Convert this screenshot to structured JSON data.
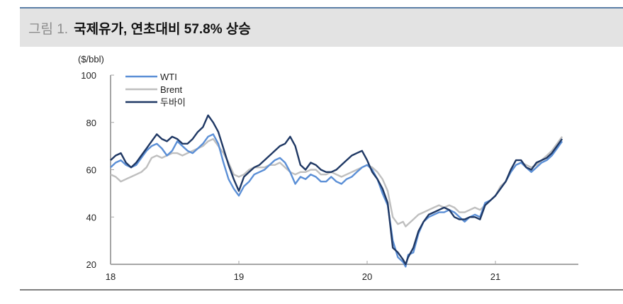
{
  "header": {
    "figure_prefix": "그림 1.",
    "title": "국제유가, 연초대비 57.8% 상승",
    "accent_color": "#5b7fa6",
    "band_color": "#e3e3e3"
  },
  "chart_data": {
    "type": "line",
    "title": "국제유가, 연초대비 57.8% 상승",
    "ylabel": "($/bbl)",
    "xlabel": "",
    "ylim": [
      20,
      100
    ],
    "yticks": [
      20,
      40,
      60,
      80,
      100
    ],
    "xticks": [
      "18",
      "19",
      "20",
      "21"
    ],
    "xlim": [
      2018.0,
      2021.65
    ],
    "grid": false,
    "legend_position": "upper-left",
    "legend": [
      "WTI",
      "Brent",
      "두바이"
    ],
    "series": [
      {
        "name": "WTI",
        "color": "#5b8fd6",
        "x": [
          2018.0,
          2018.04,
          2018.08,
          2018.12,
          2018.16,
          2018.2,
          2018.24,
          2018.28,
          2018.32,
          2018.36,
          2018.4,
          2018.44,
          2018.48,
          2018.52,
          2018.56,
          2018.6,
          2018.64,
          2018.68,
          2018.72,
          2018.76,
          2018.8,
          2018.84,
          2018.88,
          2018.92,
          2018.96,
          2019.0,
          2019.04,
          2019.08,
          2019.12,
          2019.16,
          2019.2,
          2019.24,
          2019.28,
          2019.32,
          2019.36,
          2019.4,
          2019.44,
          2019.48,
          2019.52,
          2019.56,
          2019.6,
          2019.64,
          2019.68,
          2019.72,
          2019.76,
          2019.8,
          2019.84,
          2019.88,
          2019.92,
          2019.96,
          2020.0,
          2020.04,
          2020.08,
          2020.12,
          2020.16,
          2020.2,
          2020.24,
          2020.28,
          2020.3,
          2020.32,
          2020.36,
          2020.4,
          2020.44,
          2020.48,
          2020.52,
          2020.56,
          2020.6,
          2020.64,
          2020.68,
          2020.72,
          2020.76,
          2020.8,
          2020.84,
          2020.88,
          2020.92,
          2020.96,
          2021.0,
          2021.04,
          2021.08,
          2021.12,
          2021.16,
          2021.2,
          2021.24,
          2021.28,
          2021.32,
          2021.36,
          2021.4,
          2021.44,
          2021.48,
          2021.52
        ],
        "values": [
          61,
          63,
          64,
          62,
          61,
          62,
          65,
          68,
          70,
          71,
          69,
          66,
          68,
          72,
          70,
          68,
          67,
          69,
          71,
          74,
          75,
          71,
          63,
          56,
          52,
          49,
          53,
          55,
          58,
          59,
          60,
          62,
          64,
          65,
          63,
          59,
          54,
          57,
          56,
          58,
          57,
          55,
          55,
          57,
          55,
          54,
          56,
          57,
          59,
          61,
          62,
          60,
          56,
          50,
          45,
          30,
          23,
          21,
          19,
          24,
          25,
          33,
          38,
          40,
          41,
          42,
          42,
          43,
          42,
          40,
          38,
          40,
          41,
          40,
          46,
          47,
          49,
          52,
          55,
          59,
          62,
          63,
          61,
          59,
          61,
          63,
          64,
          66,
          69,
          72
        ]
      },
      {
        "name": "Brent",
        "color": "#bfbfbf",
        "x": [
          2018.0,
          2018.04,
          2018.08,
          2018.12,
          2018.16,
          2018.2,
          2018.24,
          2018.28,
          2018.32,
          2018.36,
          2018.4,
          2018.44,
          2018.48,
          2018.52,
          2018.56,
          2018.6,
          2018.64,
          2018.68,
          2018.72,
          2018.76,
          2018.8,
          2018.84,
          2018.88,
          2018.92,
          2018.96,
          2019.0,
          2019.04,
          2019.08,
          2019.12,
          2019.16,
          2019.2,
          2019.24,
          2019.28,
          2019.32,
          2019.36,
          2019.4,
          2019.44,
          2019.48,
          2019.52,
          2019.56,
          2019.6,
          2019.64,
          2019.68,
          2019.72,
          2019.76,
          2019.8,
          2019.84,
          2019.88,
          2019.92,
          2019.96,
          2020.0,
          2020.04,
          2020.08,
          2020.12,
          2020.16,
          2020.2,
          2020.24,
          2020.28,
          2020.3,
          2020.32,
          2020.36,
          2020.4,
          2020.44,
          2020.48,
          2020.52,
          2020.56,
          2020.6,
          2020.64,
          2020.68,
          2020.72,
          2020.76,
          2020.8,
          2020.84,
          2020.88,
          2020.92,
          2020.96,
          2021.0,
          2021.04,
          2021.08,
          2021.12,
          2021.16,
          2021.2,
          2021.24,
          2021.28,
          2021.32,
          2021.36,
          2021.4,
          2021.44,
          2021.48,
          2021.52
        ],
        "values": [
          58,
          57,
          55,
          56,
          57,
          58,
          59,
          61,
          65,
          66,
          65,
          66,
          67,
          67,
          66,
          67,
          68,
          69,
          70,
          72,
          73,
          70,
          67,
          63,
          58,
          57,
          58,
          60,
          61,
          61,
          61,
          62,
          62,
          63,
          61,
          59,
          58,
          59,
          59,
          60,
          60,
          58,
          58,
          59,
          58,
          57,
          58,
          59,
          60,
          61,
          62,
          61,
          59,
          56,
          51,
          40,
          37,
          38,
          36,
          37,
          39,
          41,
          42,
          43,
          44,
          45,
          44,
          45,
          44,
          42,
          42,
          43,
          44,
          43,
          45,
          47,
          49,
          53,
          55,
          59,
          62,
          63,
          62,
          61,
          62,
          64,
          66,
          68,
          71,
          74
        ]
      },
      {
        "name": "두바이",
        "color": "#1f3864",
        "x": [
          2018.0,
          2018.04,
          2018.08,
          2018.12,
          2018.16,
          2018.2,
          2018.24,
          2018.28,
          2018.32,
          2018.36,
          2018.4,
          2018.44,
          2018.48,
          2018.52,
          2018.56,
          2018.6,
          2018.64,
          2018.68,
          2018.72,
          2018.76,
          2018.8,
          2018.84,
          2018.88,
          2018.92,
          2018.96,
          2019.0,
          2019.04,
          2019.08,
          2019.12,
          2019.16,
          2019.2,
          2019.24,
          2019.28,
          2019.32,
          2019.36,
          2019.4,
          2019.44,
          2019.48,
          2019.52,
          2019.56,
          2019.6,
          2019.64,
          2019.68,
          2019.72,
          2019.76,
          2019.8,
          2019.84,
          2019.88,
          2019.92,
          2019.96,
          2020.0,
          2020.04,
          2020.08,
          2020.12,
          2020.16,
          2020.2,
          2020.24,
          2020.28,
          2020.3,
          2020.32,
          2020.36,
          2020.4,
          2020.44,
          2020.48,
          2020.52,
          2020.56,
          2020.6,
          2020.64,
          2020.68,
          2020.72,
          2020.76,
          2020.8,
          2020.84,
          2020.88,
          2020.92,
          2020.96,
          2021.0,
          2021.04,
          2021.08,
          2021.12,
          2021.16,
          2021.2,
          2021.24,
          2021.28,
          2021.32,
          2021.36,
          2021.4,
          2021.44,
          2021.48,
          2021.52
        ],
        "values": [
          64,
          66,
          67,
          63,
          61,
          63,
          66,
          69,
          72,
          75,
          73,
          72,
          74,
          73,
          71,
          71,
          73,
          76,
          78,
          83,
          80,
          76,
          69,
          62,
          56,
          51,
          57,
          59,
          61,
          62,
          64,
          66,
          68,
          70,
          71,
          74,
          70,
          62,
          60,
          63,
          62,
          60,
          59,
          59,
          60,
          62,
          64,
          66,
          67,
          68,
          64,
          59,
          56,
          52,
          46,
          27,
          25,
          22,
          20,
          23,
          27,
          34,
          38,
          41,
          42,
          43,
          44,
          43,
          40,
          39,
          39,
          40,
          40,
          39,
          45,
          47,
          49,
          52,
          55,
          60,
          64,
          64,
          61,
          60,
          63,
          64,
          65,
          67,
          70,
          73
        ]
      }
    ]
  },
  "footer": {
    "rule_color": "#7f7f7f"
  }
}
